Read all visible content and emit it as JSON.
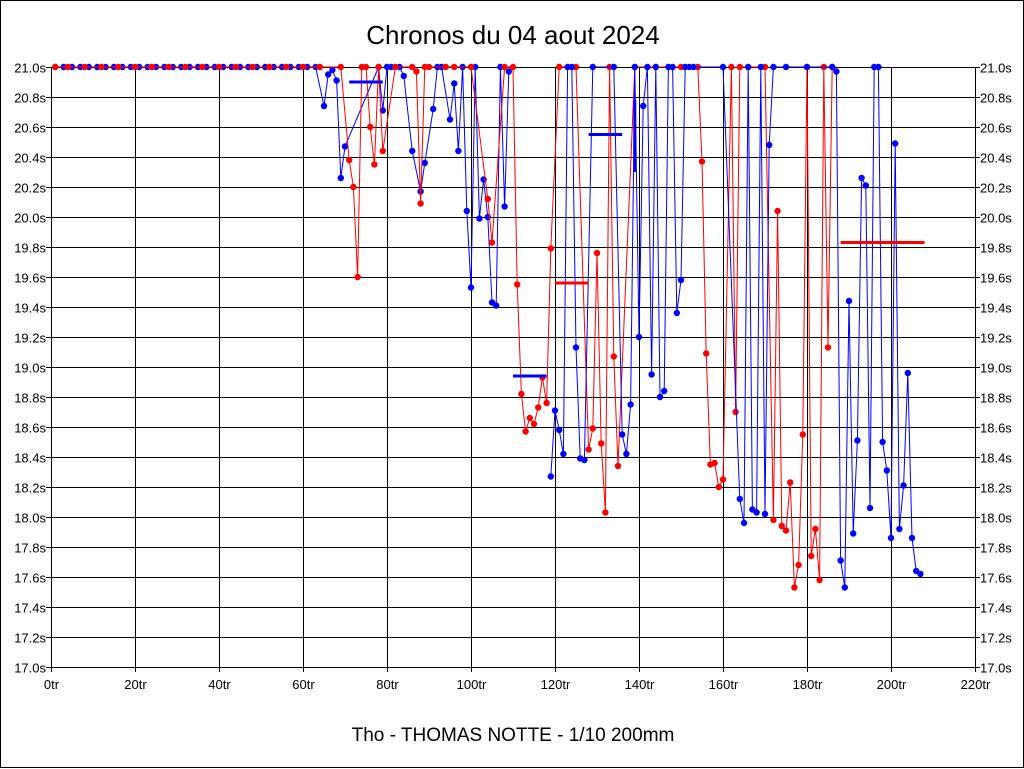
{
  "chart_data": {
    "type": "line",
    "title": "Chronos du 04 aout 2024",
    "subtitle": "Tho - THOMAS NOTTE - 1/10 200mm",
    "xlabel": "",
    "ylabel": "",
    "xlim": [
      0,
      220
    ],
    "ylim": [
      17.0,
      21.0
    ],
    "x_ticks": [
      0,
      20,
      40,
      60,
      80,
      100,
      120,
      140,
      160,
      180,
      200,
      220
    ],
    "x_tick_labels": [
      "0tr",
      "20tr",
      "40tr",
      "60tr",
      "80tr",
      "100tr",
      "120tr",
      "140tr",
      "160tr",
      "180tr",
      "200tr",
      "220tr"
    ],
    "y_ticks": [
      17.0,
      17.2,
      17.4,
      17.6,
      17.8,
      18.0,
      18.2,
      18.4,
      18.6,
      18.8,
      19.0,
      19.2,
      19.4,
      19.6,
      19.8,
      20.0,
      20.2,
      20.4,
      20.6,
      20.8,
      21.0
    ],
    "y_tick_labels": [
      "17.0s",
      "17.2s",
      "17.4s",
      "17.6s",
      "17.8s",
      "18.0s",
      "18.2s",
      "18.4s",
      "18.6s",
      "18.8s",
      "19.0s",
      "19.2s",
      "19.4s",
      "19.6s",
      "19.8s",
      "20.0s",
      "20.2s",
      "20.4s",
      "20.6s",
      "20.8s",
      "21.0s"
    ],
    "grid": true,
    "colors": {
      "red": "#ff0000",
      "blue": "#0000ff"
    },
    "series": [
      {
        "color": "#0000ff",
        "points": [
          [
            1,
            21
          ],
          [
            3,
            21
          ],
          [
            5,
            21
          ],
          [
            7,
            21
          ],
          [
            9,
            21
          ],
          [
            11,
            21
          ],
          [
            13,
            21
          ],
          [
            15,
            21
          ],
          [
            17,
            21
          ],
          [
            19,
            21
          ],
          [
            21,
            21
          ],
          [
            23,
            21
          ],
          [
            25,
            21
          ],
          [
            27,
            21
          ],
          [
            29,
            21
          ],
          [
            31,
            21
          ],
          [
            33,
            21
          ],
          [
            35,
            21
          ],
          [
            37,
            21
          ],
          [
            39,
            21
          ],
          [
            41,
            21
          ],
          [
            43,
            21
          ],
          [
            45,
            21
          ],
          [
            47,
            21
          ],
          [
            49,
            21
          ],
          [
            51,
            21
          ],
          [
            53,
            21
          ],
          [
            55,
            21
          ],
          [
            57,
            21
          ],
          [
            59,
            21
          ],
          [
            61,
            21
          ],
          [
            63,
            21
          ],
          [
            65,
            20.74
          ],
          [
            66,
            20.95
          ],
          [
            67,
            20.98
          ],
          [
            68,
            20.91
          ],
          [
            69,
            20.26
          ],
          [
            70,
            20.47
          ],
          [
            78,
            21
          ],
          [
            79,
            20.71
          ],
          [
            80,
            21
          ],
          [
            81,
            21
          ],
          [
            82,
            21
          ],
          [
            83,
            21
          ],
          [
            84,
            20.94
          ],
          [
            86,
            20.44
          ],
          [
            88,
            20.17
          ],
          [
            89,
            20.36
          ],
          [
            91,
            20.72
          ],
          [
            92,
            21
          ],
          [
            93,
            21
          ],
          [
            95,
            20.65
          ],
          [
            96,
            20.89
          ],
          [
            97,
            20.44
          ],
          [
            98,
            21
          ],
          [
            99,
            20.04
          ],
          [
            100,
            19.53
          ],
          [
            101,
            21
          ],
          [
            102,
            19.99
          ],
          [
            103,
            20.25
          ],
          [
            104,
            20.0
          ],
          [
            105,
            19.43
          ],
          [
            106,
            19.41
          ],
          [
            107,
            21
          ],
          [
            108,
            20.07
          ],
          [
            109,
            20.97
          ]
        ]
      },
      {
        "color": "#ff0000",
        "points": [
          [
            1,
            21
          ],
          [
            4,
            21
          ],
          [
            8,
            21
          ],
          [
            12,
            21
          ],
          [
            16,
            21
          ],
          [
            20,
            21
          ],
          [
            24,
            21
          ],
          [
            28,
            21
          ],
          [
            32,
            21
          ],
          [
            36,
            21
          ],
          [
            40,
            21
          ],
          [
            44,
            21
          ],
          [
            48,
            21
          ],
          [
            52,
            21
          ],
          [
            56,
            21
          ],
          [
            60,
            21
          ],
          [
            64,
            21
          ],
          [
            69,
            21
          ],
          [
            71,
            20.38
          ],
          [
            72,
            20.2
          ],
          [
            73,
            19.6
          ],
          [
            74,
            21
          ],
          [
            75,
            21
          ],
          [
            76,
            20.6
          ],
          [
            77,
            20.35
          ],
          [
            78,
            21
          ],
          [
            79,
            20.44
          ],
          [
            82,
            21
          ],
          [
            86,
            21
          ],
          [
            87,
            20.97
          ],
          [
            88,
            20.09
          ],
          [
            89,
            21
          ],
          [
            90,
            21
          ],
          [
            94,
            21
          ],
          [
            96,
            21
          ],
          [
            100,
            21
          ],
          [
            104,
            20.12
          ],
          [
            105,
            19.83
          ],
          [
            108,
            21
          ],
          [
            110,
            21
          ],
          [
            111,
            19.55
          ],
          [
            112,
            18.82
          ],
          [
            113,
            18.57
          ],
          [
            114,
            18.66
          ],
          [
            115,
            18.62
          ],
          [
            116,
            18.73
          ],
          [
            117,
            18.93
          ],
          [
            118,
            18.76
          ],
          [
            119,
            19.79
          ],
          [
            121,
            21
          ],
          [
            125,
            21
          ],
          [
            128,
            18.45
          ],
          [
            129,
            18.59
          ],
          [
            130,
            19.76
          ],
          [
            131,
            18.49
          ],
          [
            132,
            18.03
          ],
          [
            133,
            21
          ],
          [
            134,
            19.07
          ],
          [
            135,
            18.34
          ],
          [
            139,
            21
          ],
          [
            144,
            21
          ],
          [
            150,
            21
          ],
          [
            154,
            21
          ],
          [
            155,
            20.37
          ],
          [
            156,
            19.09
          ],
          [
            157,
            18.35
          ],
          [
            158,
            18.36
          ],
          [
            159,
            18.2
          ],
          [
            160,
            18.25
          ],
          [
            162,
            21
          ],
          [
            163,
            18.7
          ],
          [
            164,
            21
          ],
          [
            166,
            21
          ],
          [
            170,
            21
          ],
          [
            172,
            17.98
          ],
          [
            173,
            20.04
          ],
          [
            174,
            17.94
          ],
          [
            175,
            17.91
          ],
          [
            176,
            18.23
          ],
          [
            177,
            17.53
          ],
          [
            178,
            17.68
          ],
          [
            179,
            18.55
          ],
          [
            180,
            21
          ],
          [
            181,
            17.74
          ],
          [
            182,
            17.92
          ],
          [
            183,
            17.58
          ],
          [
            184,
            21
          ],
          [
            185,
            19.13
          ],
          [
            186,
            21
          ]
        ]
      },
      {
        "color": "#0000ff",
        "points": [
          [
            119,
            18.27
          ],
          [
            120,
            18.71
          ],
          [
            121,
            18.58
          ],
          [
            122,
            18.42
          ],
          [
            123,
            21
          ],
          [
            124,
            21
          ],
          [
            125,
            19.13
          ],
          [
            126,
            18.39
          ],
          [
            127,
            18.38
          ],
          [
            129,
            21
          ],
          [
            134,
            21
          ],
          [
            136,
            18.55
          ],
          [
            137,
            18.42
          ],
          [
            138,
            18.75
          ],
          [
            139,
            21
          ],
          [
            140,
            19.2
          ],
          [
            141,
            20.74
          ],
          [
            142,
            21
          ],
          [
            143,
            18.95
          ],
          [
            144,
            21
          ],
          [
            145,
            18.8
          ],
          [
            146,
            18.84
          ],
          [
            147,
            21
          ],
          [
            148,
            21
          ],
          [
            149,
            19.36
          ],
          [
            150,
            19.58
          ],
          [
            151,
            21
          ],
          [
            152,
            21
          ],
          [
            153,
            21
          ],
          [
            160,
            21
          ],
          [
            164,
            18.12
          ],
          [
            165,
            17.96
          ],
          [
            166,
            21
          ],
          [
            167,
            18.05
          ],
          [
            168,
            18.03
          ],
          [
            169,
            21
          ],
          [
            170,
            18.02
          ],
          [
            171,
            20.48
          ],
          [
            172,
            21
          ],
          [
            175,
            21
          ],
          [
            180,
            21
          ],
          [
            186,
            21
          ],
          [
            187,
            20.97
          ],
          [
            188,
            17.71
          ],
          [
            189,
            17.53
          ],
          [
            190,
            19.44
          ],
          [
            191,
            17.89
          ],
          [
            192,
            18.51
          ],
          [
            193,
            20.26
          ],
          [
            194,
            20.21
          ],
          [
            195,
            18.06
          ],
          [
            196,
            21
          ],
          [
            197,
            21
          ],
          [
            198,
            18.5
          ],
          [
            199,
            18.31
          ],
          [
            200,
            17.86
          ],
          [
            201,
            20.49
          ],
          [
            202,
            17.92
          ],
          [
            203,
            18.21
          ],
          [
            204,
            18.96
          ],
          [
            205,
            17.86
          ],
          [
            206,
            17.64
          ],
          [
            207,
            17.62
          ]
        ]
      }
    ],
    "segments": [
      {
        "color": "#0000ff",
        "x1": 71,
        "x2": 79,
        "y1": 20.9,
        "y2": 20.9
      },
      {
        "color": "#0000ff",
        "x1": 110,
        "x2": 118,
        "y1": 18.94,
        "y2": 18.94
      },
      {
        "color": "#ff0000",
        "x1": 120,
        "x2": 128,
        "y1": 19.56,
        "y2": 19.56
      },
      {
        "color": "#0000ff",
        "x1": 128,
        "x2": 136,
        "y1": 20.55,
        "y2": 20.55
      },
      {
        "color": "#0000ff",
        "x1": 139,
        "x2": 139,
        "y1": 20.3,
        "y2": 20.78
      },
      {
        "color": "#ff0000",
        "x1": 188,
        "x2": 208,
        "y1": 19.83,
        "y2": 19.83
      }
    ]
  }
}
